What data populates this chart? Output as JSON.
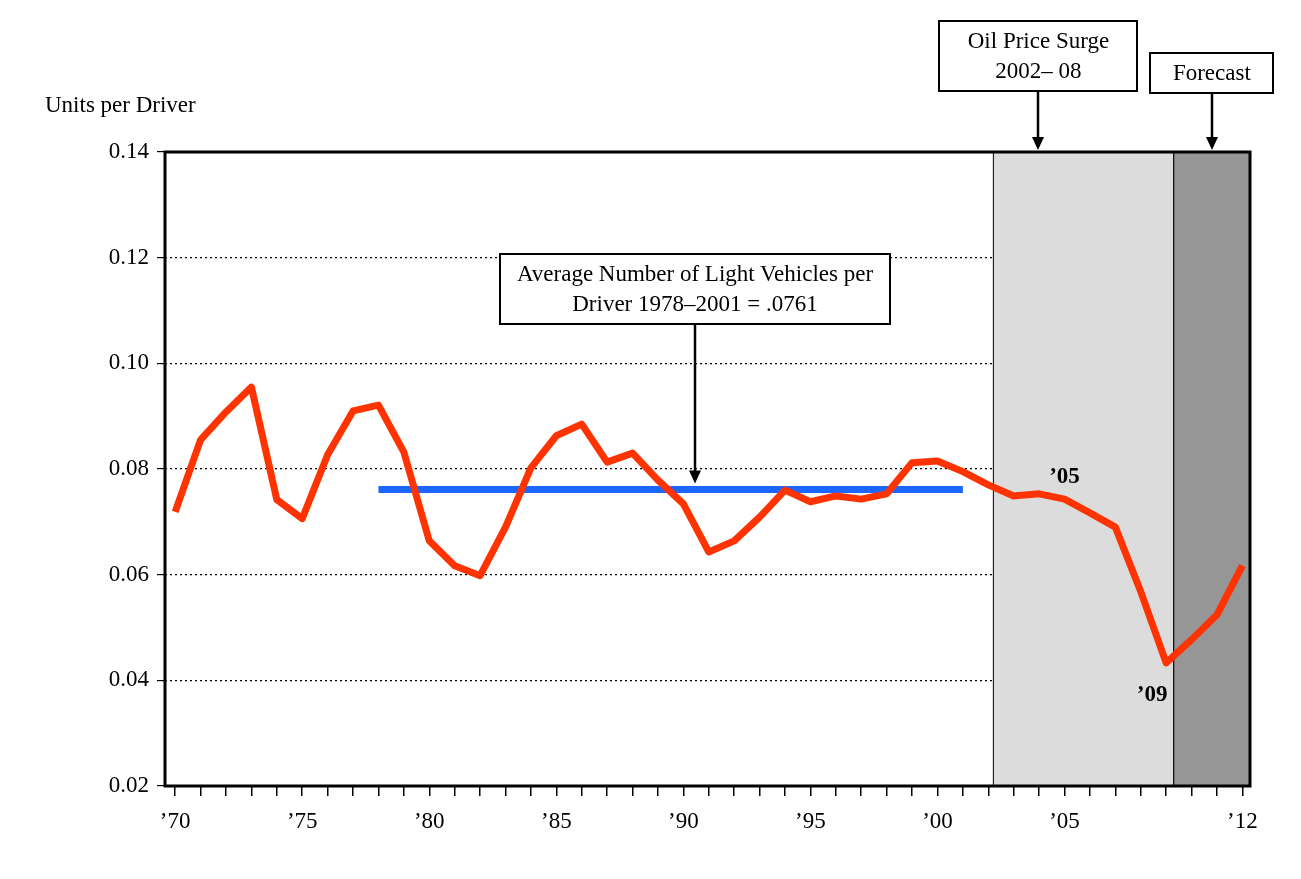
{
  "chart_data": {
    "type": "line",
    "ylabel": "Units per Driver",
    "x": [
      1970,
      1971,
      1972,
      1973,
      1974,
      1975,
      1976,
      1977,
      1978,
      1979,
      1980,
      1981,
      1982,
      1983,
      1984,
      1985,
      1986,
      1987,
      1988,
      1989,
      1990,
      1991,
      1992,
      1993,
      1994,
      1995,
      1996,
      1997,
      1998,
      1999,
      2000,
      2001,
      2002,
      2003,
      2004,
      2005,
      2006,
      2007,
      2008,
      2009,
      2010,
      2011,
      2012
    ],
    "series": [
      {
        "color": "#ff3300",
        "values": [
          0.0719,
          0.0855,
          0.0908,
          0.0955,
          0.0742,
          0.0706,
          0.0827,
          0.091,
          0.0921,
          0.0832,
          0.0664,
          0.0617,
          0.0598,
          0.069,
          0.0802,
          0.0863,
          0.0885,
          0.0813,
          0.083,
          0.0779,
          0.0734,
          0.0643,
          0.0664,
          0.0709,
          0.076,
          0.0738,
          0.0749,
          0.0743,
          0.0753,
          0.0812,
          0.0815,
          0.0795,
          0.077,
          0.0749,
          0.0753,
          0.0743,
          0.0717,
          0.069,
          0.0568,
          0.0433,
          0.0477,
          0.0524,
          0.0617
        ]
      },
      {
        "color": "#1a66ff",
        "x": [
          1978,
          2001
        ],
        "values": [
          0.0761,
          0.0761
        ]
      }
    ],
    "xlim": [
      1969.6,
      2012.3
    ],
    "xticks": [
      {
        "value": 1970,
        "label": "’70"
      },
      {
        "value": 1971,
        "label": null
      },
      {
        "value": 1972,
        "label": null
      },
      {
        "value": 1973,
        "label": null
      },
      {
        "value": 1974,
        "label": null
      },
      {
        "value": 1975,
        "label": "’75"
      },
      {
        "value": 1976,
        "label": null
      },
      {
        "value": 1977,
        "label": null
      },
      {
        "value": 1978,
        "label": null
      },
      {
        "value": 1979,
        "label": null
      },
      {
        "value": 1980,
        "label": "’80"
      },
      {
        "value": 1981,
        "label": null
      },
      {
        "value": 1982,
        "label": null
      },
      {
        "value": 1983,
        "label": null
      },
      {
        "value": 1984,
        "label": null
      },
      {
        "value": 1985,
        "label": "’85"
      },
      {
        "value": 1986,
        "label": null
      },
      {
        "value": 1987,
        "label": null
      },
      {
        "value": 1988,
        "label": null
      },
      {
        "value": 1989,
        "label": null
      },
      {
        "value": 1990,
        "label": "’90"
      },
      {
        "value": 1991,
        "label": null
      },
      {
        "value": 1992,
        "label": null
      },
      {
        "value": 1993,
        "label": null
      },
      {
        "value": 1994,
        "label": null
      },
      {
        "value": 1995,
        "label": "’95"
      },
      {
        "value": 1996,
        "label": null
      },
      {
        "value": 1997,
        "label": null
      },
      {
        "value": 1998,
        "label": null
      },
      {
        "value": 1999,
        "label": null
      },
      {
        "value": 2000,
        "label": "’00"
      },
      {
        "value": 2001,
        "label": null
      },
      {
        "value": 2002,
        "label": null
      },
      {
        "value": 2003,
        "label": null
      },
      {
        "value": 2004,
        "label": null
      },
      {
        "value": 2005,
        "label": "’05"
      },
      {
        "value": 2006,
        "label": null
      },
      {
        "value": 2007,
        "label": null
      },
      {
        "value": 2008,
        "label": null
      },
      {
        "value": 2009,
        "label": null
      },
      {
        "value": 2010,
        "label": null
      },
      {
        "value": 2011,
        "label": null
      },
      {
        "value": 2012,
        "label": "’12"
      }
    ],
    "ylim": [
      0.02,
      0.14
    ],
    "yticks": [
      {
        "value": 0.02,
        "label": "0.02"
      },
      {
        "value": 0.04,
        "label": "0.04"
      },
      {
        "value": 0.06,
        "label": "0.06"
      },
      {
        "value": 0.08,
        "label": "0.08"
      },
      {
        "value": 0.1,
        "label": "0.10"
      },
      {
        "value": 0.12,
        "label": "0.12"
      },
      {
        "value": 0.14,
        "label": "0.14"
      }
    ],
    "grid": "y",
    "legend": false,
    "marker": "none",
    "line_style": "solid",
    "bands": [
      {
        "axis": "x",
        "from": 2002.2,
        "to": 2009.3,
        "label": "Oil Price Surge 2002– 08",
        "color": "#dcdcdc"
      },
      {
        "axis": "x",
        "from": 2009.3,
        "to": 2012.3,
        "label": "Forecast",
        "color": "#969696"
      }
    ],
    "annotations": [
      "Average Number of Light Vehicles per Driver 1978–2001 = .0761",
      {
        "text": "’05",
        "x": 2005,
        "y": 0.0743
      },
      {
        "text": "’09",
        "x": 2009,
        "y": 0.0433
      }
    ]
  }
}
